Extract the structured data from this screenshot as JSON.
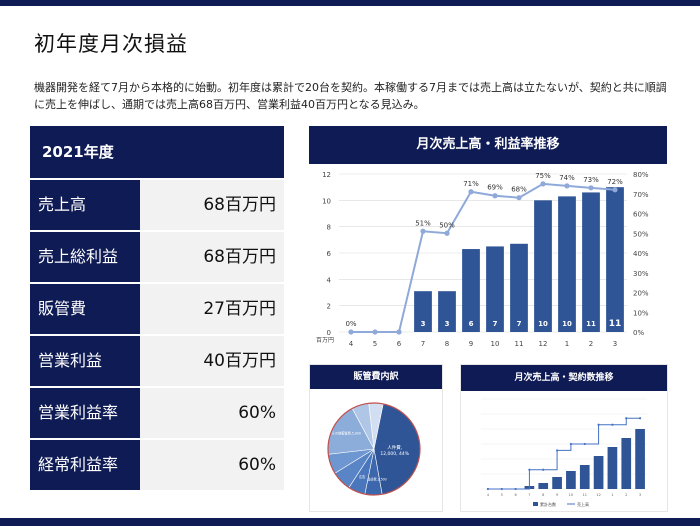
{
  "page": {
    "title": "初年度月次損益",
    "description": "機器開発を経て7月から本格的に始動。初年度は累計で20台を契約。本稼働する7月までは売上高は立たないが、契約と共に順調に売上を伸ばし、通期では売上高68百万円、営業利益40百万円となる見込み。"
  },
  "kpi": {
    "header": "2021年度",
    "rows": [
      {
        "label": "売上高",
        "value": "68百万円"
      },
      {
        "label": "売上総利益",
        "value": "68百万円"
      },
      {
        "label": "販管費",
        "value": "27百万円"
      },
      {
        "label": "営業利益",
        "value": "40百万円"
      },
      {
        "label": "営業利益率",
        "value": "60%"
      },
      {
        "label": "経常利益率",
        "value": "60%"
      }
    ]
  },
  "colors": {
    "navy": "#0f1b54",
    "bar": "#2f5597",
    "line": "#8fa9d9",
    "grid": "#d9d9d9",
    "pie_border": "#c0504d"
  },
  "chart_data": [
    {
      "id": "monthly",
      "type": "bar",
      "title": "月次売上高・利益率推移",
      "xlabel": "",
      "ylabel_unit": "百万円",
      "categories": [
        "4",
        "5",
        "6",
        "7",
        "8",
        "9",
        "10",
        "11",
        "12",
        "1",
        "2",
        "3"
      ],
      "series": [
        {
          "kind": "bar",
          "axis": "left",
          "values": [
            0,
            0,
            0,
            3.1,
            3.1,
            6.3,
            6.5,
            6.7,
            10,
            10.3,
            10.6,
            11
          ],
          "labels": [
            "",
            "",
            "",
            "3",
            "3",
            "6",
            "7",
            "7",
            "10",
            "10",
            "11",
            "11"
          ]
        },
        {
          "kind": "line",
          "axis": "right",
          "values": [
            0,
            0,
            0,
            51,
            50,
            71,
            69,
            68,
            75,
            74,
            73,
            72
          ],
          "labels": [
            "0%",
            "",
            "",
            "51%",
            "50%",
            "71%",
            "69%",
            "68%",
            "75%",
            "74%",
            "73%",
            "72%"
          ]
        }
      ],
      "ylim": [
        0,
        12
      ],
      "yticks": [
        0,
        2,
        4,
        6,
        8,
        10,
        12
      ],
      "y2lim": [
        0,
        80
      ],
      "y2ticks": [
        "0%",
        "10%",
        "20%",
        "30%",
        "40%",
        "50%",
        "60%",
        "70%",
        "80%"
      ],
      "grid": true
    },
    {
      "id": "sga",
      "type": "pie",
      "title": "販管費内訳",
      "slices": [
        {
          "label": "人件費,\n12,000, 44%",
          "value": 44,
          "color": "#2f5597"
        },
        {
          "label": "減価償却費,1,500",
          "value": 6,
          "color": "#3c67ad"
        },
        {
          "label": "広告",
          "value": 6,
          "color": "#4a76bb"
        },
        {
          "label": "",
          "value": 7,
          "color": "#5985c6"
        },
        {
          "label": "",
          "value": 7,
          "color": "#6e96d0"
        },
        {
          "label": "その他販管費,5,000",
          "value": 19,
          "color": "#8cadda"
        },
        {
          "label": "",
          "value": 6,
          "color": "#b0c6e6"
        },
        {
          "label": "",
          "value": 5,
          "color": "#d2def2"
        }
      ]
    },
    {
      "id": "contracts",
      "type": "bar",
      "title": "月次売上高・契約数推移",
      "categories": [
        "4",
        "5",
        "6",
        "7",
        "8",
        "9",
        "10",
        "11",
        "12",
        "1",
        "2",
        "3"
      ],
      "series": [
        {
          "kind": "bar",
          "name": "累計台数",
          "values": [
            0,
            0,
            0,
            1,
            2,
            4,
            6,
            8,
            11,
            14,
            17,
            20
          ]
        },
        {
          "kind": "line",
          "name": "売上高",
          "values": [
            0,
            0,
            0,
            3,
            3,
            6,
            7,
            7,
            10,
            10,
            11,
            11
          ]
        }
      ],
      "ylim": [
        0,
        30
      ],
      "y2lim": [
        0,
        14
      ],
      "legend": "bottom"
    }
  ]
}
